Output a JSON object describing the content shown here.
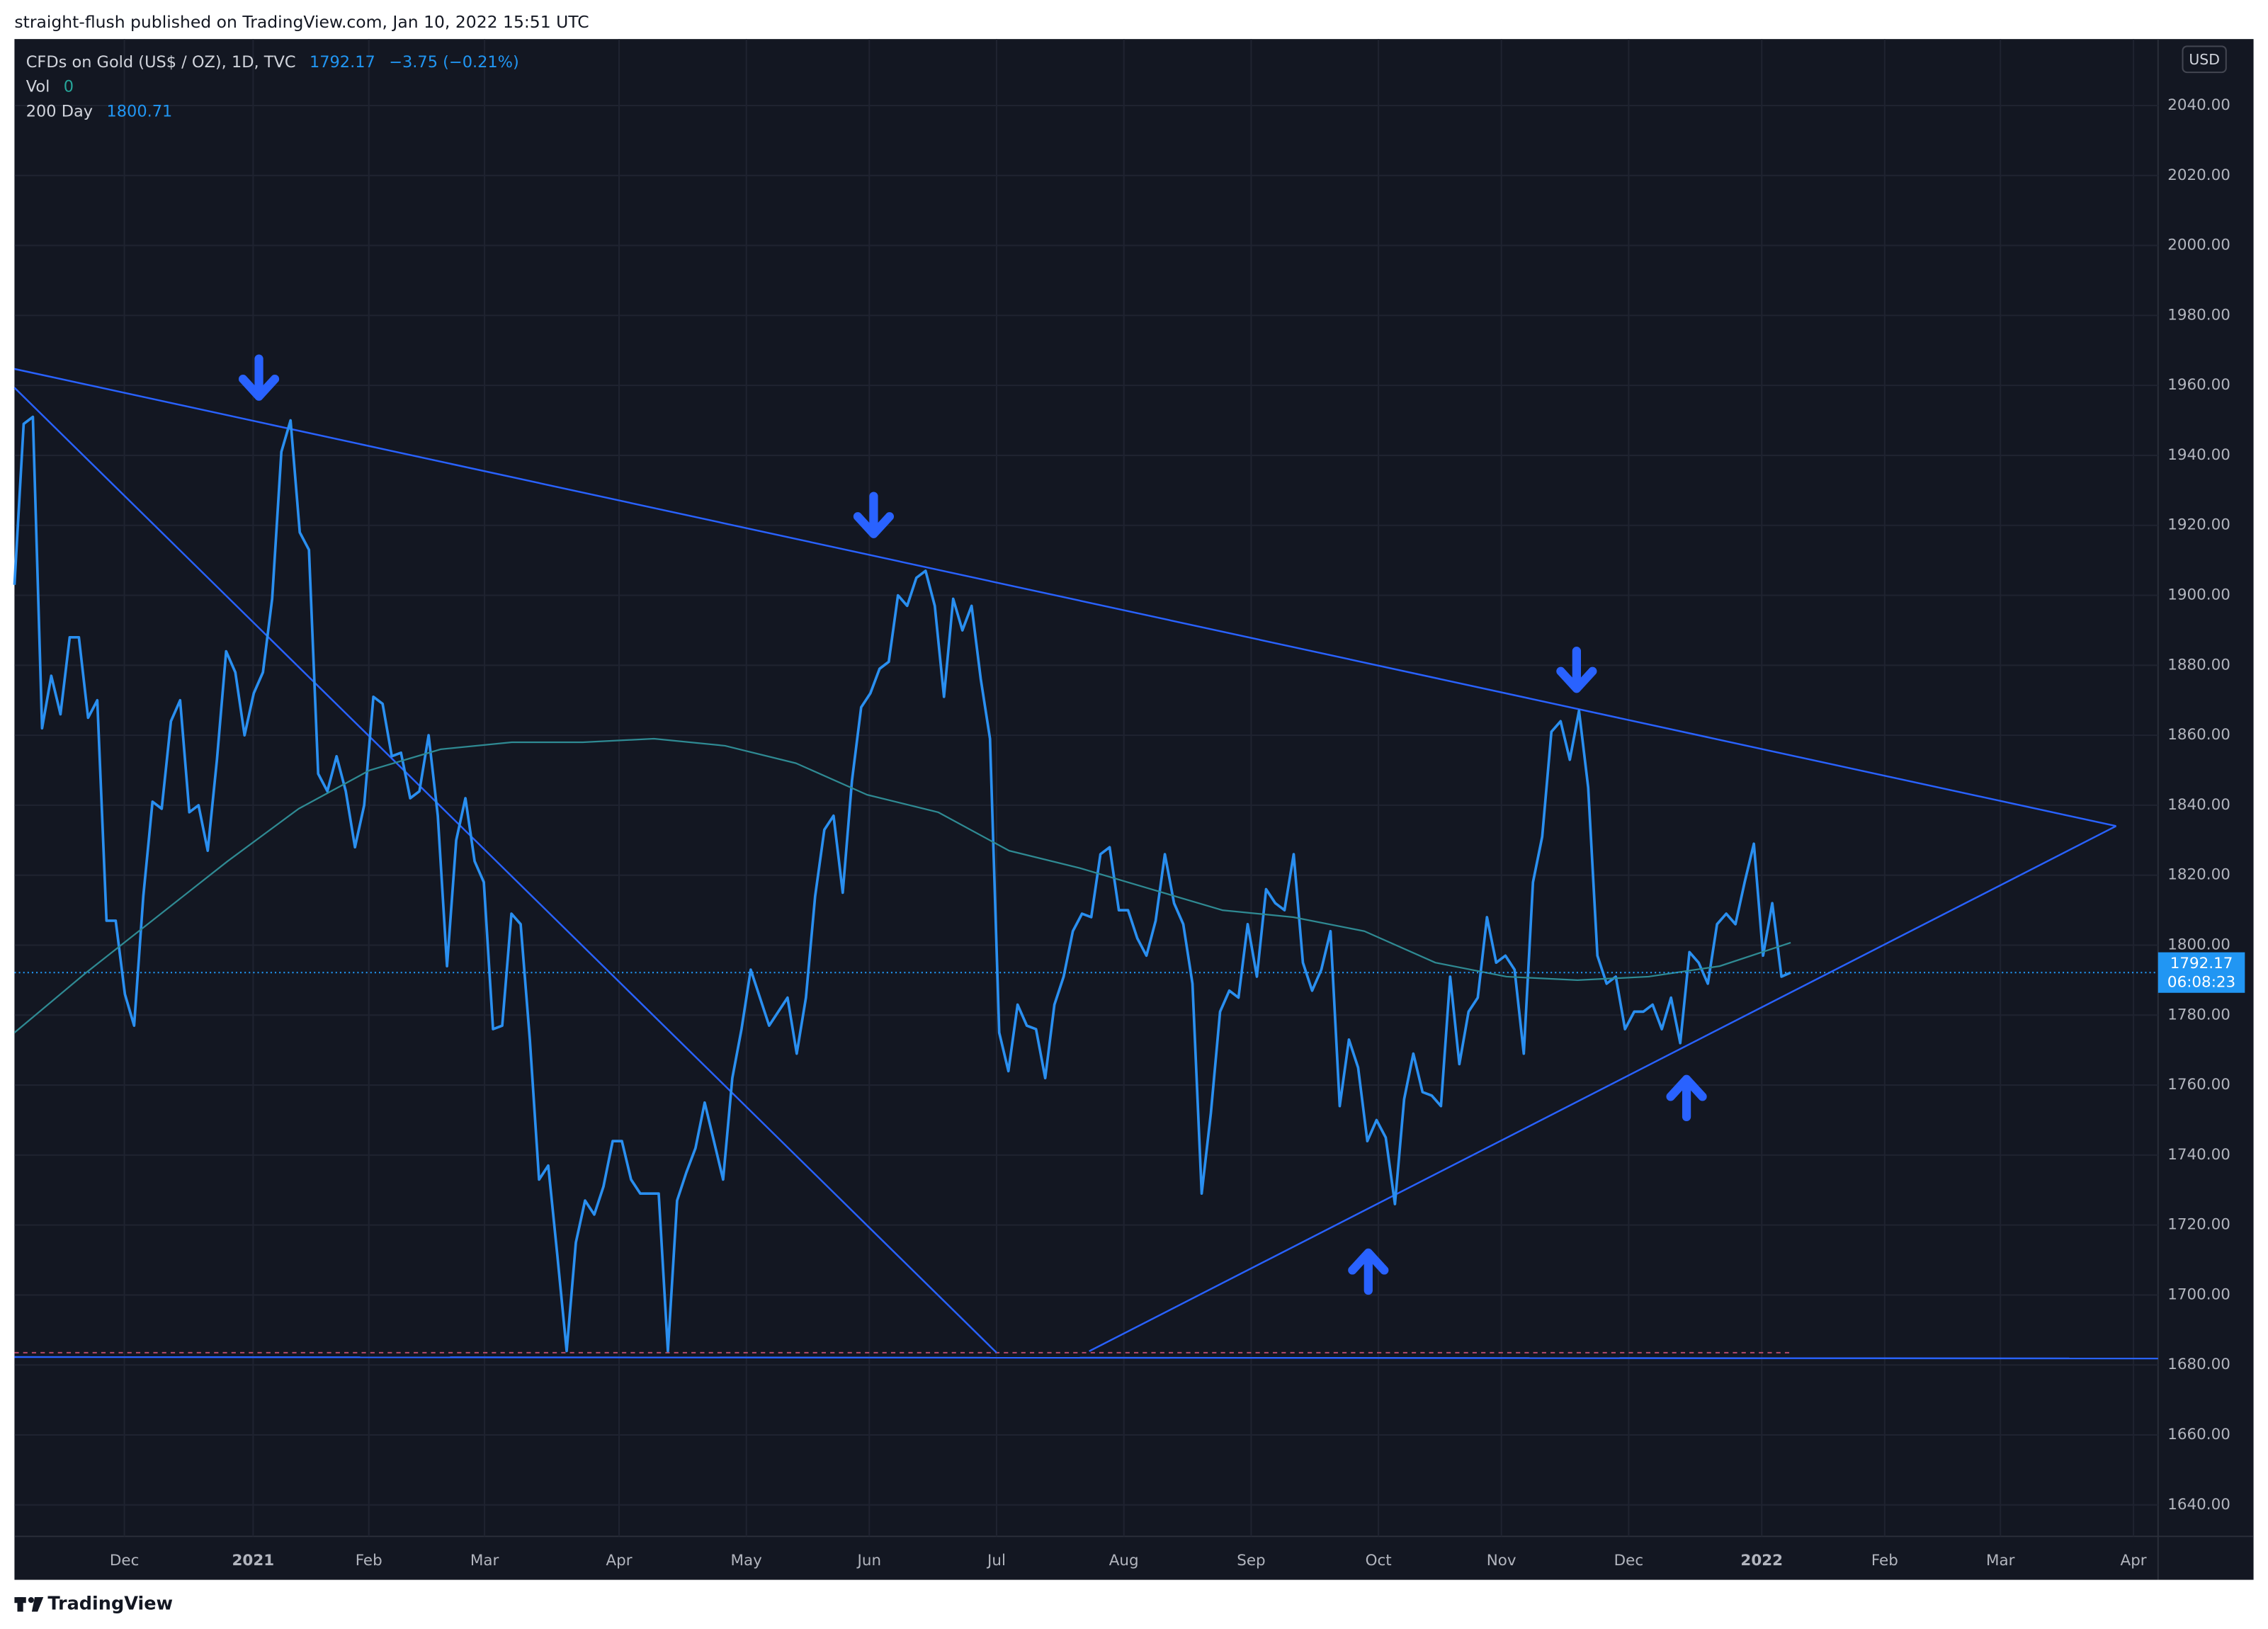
{
  "header": {
    "text": "straight-flush published on TradingView.com, Jan 10, 2022 15:51 UTC"
  },
  "chart_data": {
    "type": "line",
    "currency": "USD",
    "change": "−3.75 (−0.21%)",
    "vol_label": "Vol",
    "vol_value": 0,
    "countdown": "06:08:23",
    "x_labels": [
      "Dec",
      "2021",
      "Feb",
      "Mar",
      "Apr",
      "May",
      "Jun",
      "Jul",
      "Aug",
      "Sep",
      "Oct",
      "Nov",
      "Dec",
      "2022",
      "Feb",
      "Mar",
      "Apr"
    ],
    "ylim": [
      1631,
      2059
    ],
    "yticks": [
      {
        "value": 1640,
        "label": "1640.00"
      },
      {
        "value": 1660,
        "label": "1660.00"
      },
      {
        "value": 1680,
        "label": "1680.00"
      },
      {
        "value": 1700,
        "label": "1700.00"
      },
      {
        "value": 1720,
        "label": "1720.00"
      },
      {
        "value": 1740,
        "label": "1740.00"
      },
      {
        "value": 1760,
        "label": "1760.00"
      },
      {
        "value": 1780,
        "label": "1780.00"
      },
      {
        "value": 1800,
        "label": "1800.00"
      },
      {
        "value": 1820,
        "label": "1820.00"
      },
      {
        "value": 1840,
        "label": "1840.00"
      },
      {
        "value": 1860,
        "label": "1860.00"
      },
      {
        "value": 1880,
        "label": "1880.00"
      },
      {
        "value": 1900,
        "label": "1900.00"
      },
      {
        "value": 1920,
        "label": "1920.00"
      },
      {
        "value": 1940,
        "label": "1940.00"
      },
      {
        "value": 1960,
        "label": "1960.00"
      },
      {
        "value": 1980,
        "label": "1980.00"
      },
      {
        "value": 2000,
        "label": "2000.00"
      },
      {
        "value": 2020,
        "label": "2020.00"
      },
      {
        "value": 2040,
        "label": "2040.00"
      }
    ],
    "grid": true,
    "series": [
      {
        "name": "CFDs on Gold (US$ / OZ), 1D, TVC",
        "color": "#2a8ff0",
        "values": [
          1903,
          1949,
          1951,
          1862,
          1877,
          1866,
          1888,
          1888,
          1865,
          1870,
          1807,
          1807,
          1786,
          1777,
          1814,
          1841,
          1839,
          1864,
          1870,
          1838,
          1840,
          1827,
          1853,
          1884,
          1878,
          1860,
          1872,
          1878,
          1899,
          1941,
          1950,
          1918,
          1913,
          1849,
          1844,
          1854,
          1844,
          1828,
          1840,
          1871,
          1869,
          1854,
          1855,
          1842,
          1844,
          1860,
          1837,
          1794,
          1830,
          1842,
          1824,
          1818,
          1776,
          1777,
          1809,
          1806,
          1773,
          1733,
          1737,
          1711,
          1684,
          1715,
          1727,
          1723,
          1731,
          1744,
          1744,
          1733,
          1729,
          1729,
          1729,
          1684,
          1727,
          1735,
          1742,
          1755,
          1744,
          1733,
          1762,
          1776,
          1793,
          1785,
          1777,
          1781,
          1785,
          1769,
          1785,
          1814,
          1833,
          1837,
          1815,
          1847,
          1868,
          1872,
          1879,
          1881,
          1900,
          1897,
          1905,
          1907,
          1897,
          1871,
          1899,
          1890,
          1897,
          1876,
          1859,
          1775,
          1764,
          1783,
          1777,
          1776,
          1762,
          1783,
          1791,
          1804,
          1809,
          1808,
          1826,
          1828,
          1810,
          1810,
          1802,
          1797,
          1807,
          1826,
          1812,
          1806,
          1789,
          1729,
          1752,
          1781,
          1787,
          1785,
          1806,
          1791,
          1816,
          1812,
          1810,
          1826,
          1795,
          1787,
          1793,
          1804,
          1754,
          1773,
          1765,
          1744,
          1750,
          1745,
          1726,
          1756,
          1769,
          1758,
          1757,
          1754,
          1791,
          1766,
          1781,
          1785,
          1808,
          1795,
          1797,
          1793,
          1769,
          1818,
          1831,
          1861,
          1864,
          1853,
          1867,
          1845,
          1797,
          1789,
          1791,
          1776,
          1781,
          1781,
          1783,
          1776,
          1785,
          1772,
          1798,
          1795,
          1789,
          1806,
          1809,
          1806,
          1818,
          1829,
          1797,
          1812,
          1791,
          1792.17
        ]
      },
      {
        "name": "200 Day",
        "color": "#2f8a93",
        "values": [
          1775,
          1792,
          1808,
          1824,
          1839,
          1850,
          1856,
          1858,
          1858,
          1859,
          1857,
          1852,
          1843,
          1838,
          1827,
          1822,
          1816,
          1810,
          1808,
          1804,
          1795,
          1791,
          1790,
          1791,
          1794,
          1800.71
        ]
      }
    ]
  },
  "footer": {
    "brand": "TradingView"
  }
}
